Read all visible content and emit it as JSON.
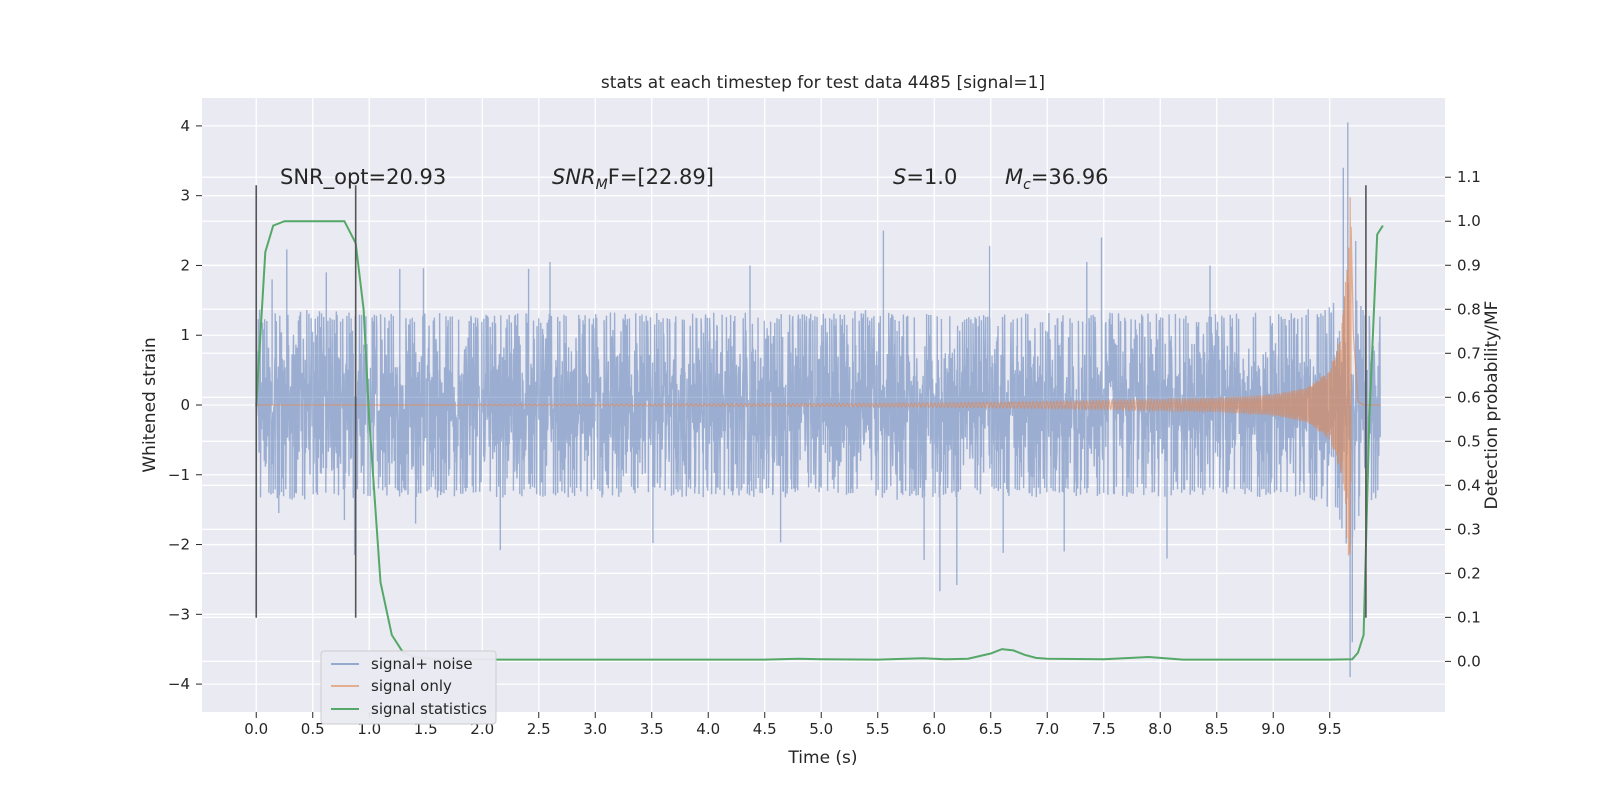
{
  "chart_data": {
    "type": "line",
    "title": "stats at each timestep for test data 4485 [signal=1]",
    "xlabel": "Time (s)",
    "ylabel": "Whitened strain",
    "y2label": "Detection probability/MF",
    "xlim": [
      -0.48,
      10.52
    ],
    "ylim": [
      -4.4,
      4.4
    ],
    "y2lim": [
      -0.115,
      1.28
    ],
    "xticks": [
      0.0,
      0.5,
      1.0,
      1.5,
      2.0,
      2.5,
      3.0,
      3.5,
      4.0,
      4.5,
      5.0,
      5.5,
      6.0,
      6.5,
      7.0,
      7.5,
      8.0,
      8.5,
      9.0,
      9.5
    ],
    "xtick_labels": [
      "0.0",
      "0.5",
      "1.0",
      "1.5",
      "2.0",
      "2.5",
      "3.0",
      "3.5",
      "4.0",
      "4.5",
      "5.0",
      "5.5",
      "6.0",
      "6.5",
      "7.0",
      "7.5",
      "8.0",
      "8.5",
      "9.0",
      "9.5"
    ],
    "yticks": [
      -4,
      -3,
      -2,
      -1,
      0,
      1,
      2,
      3,
      4
    ],
    "ytick_labels": [
      "−4",
      "−3",
      "−2",
      "−1",
      "0",
      "1",
      "2",
      "3",
      "4"
    ],
    "y2ticks": [
      0.0,
      0.1,
      0.2,
      0.3,
      0.4,
      0.5,
      0.6,
      0.7,
      0.8,
      0.9,
      1.0,
      1.1
    ],
    "y2tick_labels": [
      "0.0",
      "0.1",
      "0.2",
      "0.3",
      "0.4",
      "0.5",
      "0.6",
      "0.7",
      "0.8",
      "0.9",
      "1.0",
      "1.1"
    ],
    "grid": true,
    "legend_position": "lower-left",
    "annotations": {
      "snr_opt": "SNR_opt=20.93",
      "snr_mf_base": "SNR",
      "snr_mf_sub": "M",
      "snr_mf_rest": "F=[22.89]",
      "s_label": "S",
      "s_value": "=1.0",
      "mc_base": "M",
      "mc_sub": "c",
      "mc_value": "=36.96"
    },
    "vlines": [
      {
        "x": 0.0,
        "y_from": -3.05,
        "y_to": 3.15
      },
      {
        "x": 0.88,
        "y_from": -3.05,
        "y_to": 3.15
      },
      {
        "x": 9.82,
        "y_from": -3.05,
        "y_to": 3.15
      }
    ],
    "series": [
      {
        "name": "signal+ noise",
        "color": "#4c72b0",
        "axis": "left",
        "envelope": {
          "x": [
            0.0,
            0.5,
            1.0,
            1.5,
            2.0,
            2.5,
            3.0,
            3.5,
            4.0,
            4.5,
            5.0,
            5.5,
            6.0,
            6.5,
            7.0,
            7.5,
            8.0,
            8.5,
            9.0,
            9.3,
            9.5,
            9.6,
            9.68,
            9.8,
            9.95
          ],
          "upper": [
            1.3,
            1.35,
            1.3,
            1.3,
            1.3,
            1.3,
            1.3,
            1.3,
            1.3,
            1.3,
            1.3,
            1.35,
            1.3,
            1.3,
            1.3,
            1.3,
            1.3,
            1.3,
            1.3,
            1.35,
            1.4,
            1.6,
            1.8,
            1.4,
            1.3
          ],
          "lower": [
            -1.3,
            -1.35,
            -1.3,
            -1.3,
            -1.3,
            -1.3,
            -1.3,
            -1.3,
            -1.3,
            -1.3,
            -1.3,
            -1.35,
            -1.3,
            -1.3,
            -1.3,
            -1.3,
            -1.3,
            -1.3,
            -1.3,
            -1.35,
            -1.45,
            -1.7,
            -2.2,
            -1.4,
            -1.3
          ]
        },
        "peaks": [
          {
            "x": 0.03,
            "y": 1.37
          },
          {
            "x": 0.14,
            "y": 1.8
          },
          {
            "x": 0.2,
            "y": -1.55
          },
          {
            "x": 0.27,
            "y": 2.23
          },
          {
            "x": 0.62,
            "y": 1.9
          },
          {
            "x": 0.78,
            "y": -1.65
          },
          {
            "x": 0.87,
            "y": -2.15
          },
          {
            "x": 1.27,
            "y": 1.95
          },
          {
            "x": 1.41,
            "y": -1.7
          },
          {
            "x": 1.48,
            "y": 1.96
          },
          {
            "x": 2.16,
            "y": -2.08
          },
          {
            "x": 2.41,
            "y": 1.95
          },
          {
            "x": 2.6,
            "y": 2.05
          },
          {
            "x": 3.51,
            "y": -1.98
          },
          {
            "x": 4.37,
            "y": 2.0
          },
          {
            "x": 4.64,
            "y": -1.97
          },
          {
            "x": 5.55,
            "y": 2.5
          },
          {
            "x": 5.91,
            "y": -2.22
          },
          {
            "x": 6.05,
            "y": -2.67
          },
          {
            "x": 6.2,
            "y": -2.58
          },
          {
            "x": 6.49,
            "y": 2.28
          },
          {
            "x": 6.61,
            "y": -2.12
          },
          {
            "x": 7.15,
            "y": -2.1
          },
          {
            "x": 7.35,
            "y": 2.05
          },
          {
            "x": 7.48,
            "y": 2.4
          },
          {
            "x": 8.06,
            "y": -2.2
          },
          {
            "x": 8.44,
            "y": 2.0
          },
          {
            "x": 9.62,
            "y": 3.4
          },
          {
            "x": 9.66,
            "y": 4.05
          },
          {
            "x": 9.68,
            "y": -3.9
          },
          {
            "x": 9.7,
            "y": -3.4
          },
          {
            "x": 9.73,
            "y": 2.35
          }
        ]
      },
      {
        "name": "signal only",
        "color": "#dd8452",
        "axis": "left",
        "envelope": {
          "x": [
            0.0,
            5.0,
            6.0,
            7.0,
            8.0,
            8.5,
            9.0,
            9.3,
            9.5,
            9.6,
            9.65,
            9.68,
            9.71,
            9.75,
            9.8,
            9.95
          ],
          "amplitude": [
            0.0,
            0.02,
            0.03,
            0.05,
            0.08,
            0.1,
            0.15,
            0.25,
            0.5,
            1.0,
            2.0,
            3.2,
            1.0,
            0.05,
            0.0,
            0.0
          ]
        }
      },
      {
        "name": "signal statistics",
        "color": "#55a868",
        "axis": "right",
        "x": [
          0.0,
          0.08,
          0.15,
          0.25,
          0.4,
          0.6,
          0.78,
          0.88,
          0.95,
          1.0,
          1.1,
          1.2,
          1.3,
          1.4,
          1.6,
          2.0,
          3.0,
          4.0,
          4.5,
          4.8,
          5.0,
          5.5,
          5.9,
          6.1,
          6.3,
          6.5,
          6.6,
          6.7,
          6.8,
          6.9,
          7.0,
          7.5,
          7.9,
          8.2,
          9.0,
          9.5,
          9.7,
          9.75,
          9.8,
          9.85,
          9.92,
          9.97
        ],
        "y": [
          0.58,
          0.93,
          0.99,
          1.0,
          1.0,
          1.0,
          1.0,
          0.95,
          0.8,
          0.55,
          0.18,
          0.06,
          0.02,
          0.01,
          0.005,
          0.004,
          0.004,
          0.004,
          0.004,
          0.006,
          0.005,
          0.004,
          0.007,
          0.005,
          0.006,
          0.018,
          0.028,
          0.025,
          0.015,
          0.008,
          0.006,
          0.005,
          0.01,
          0.004,
          0.004,
          0.004,
          0.005,
          0.02,
          0.06,
          0.55,
          0.97,
          0.99
        ]
      }
    ]
  }
}
